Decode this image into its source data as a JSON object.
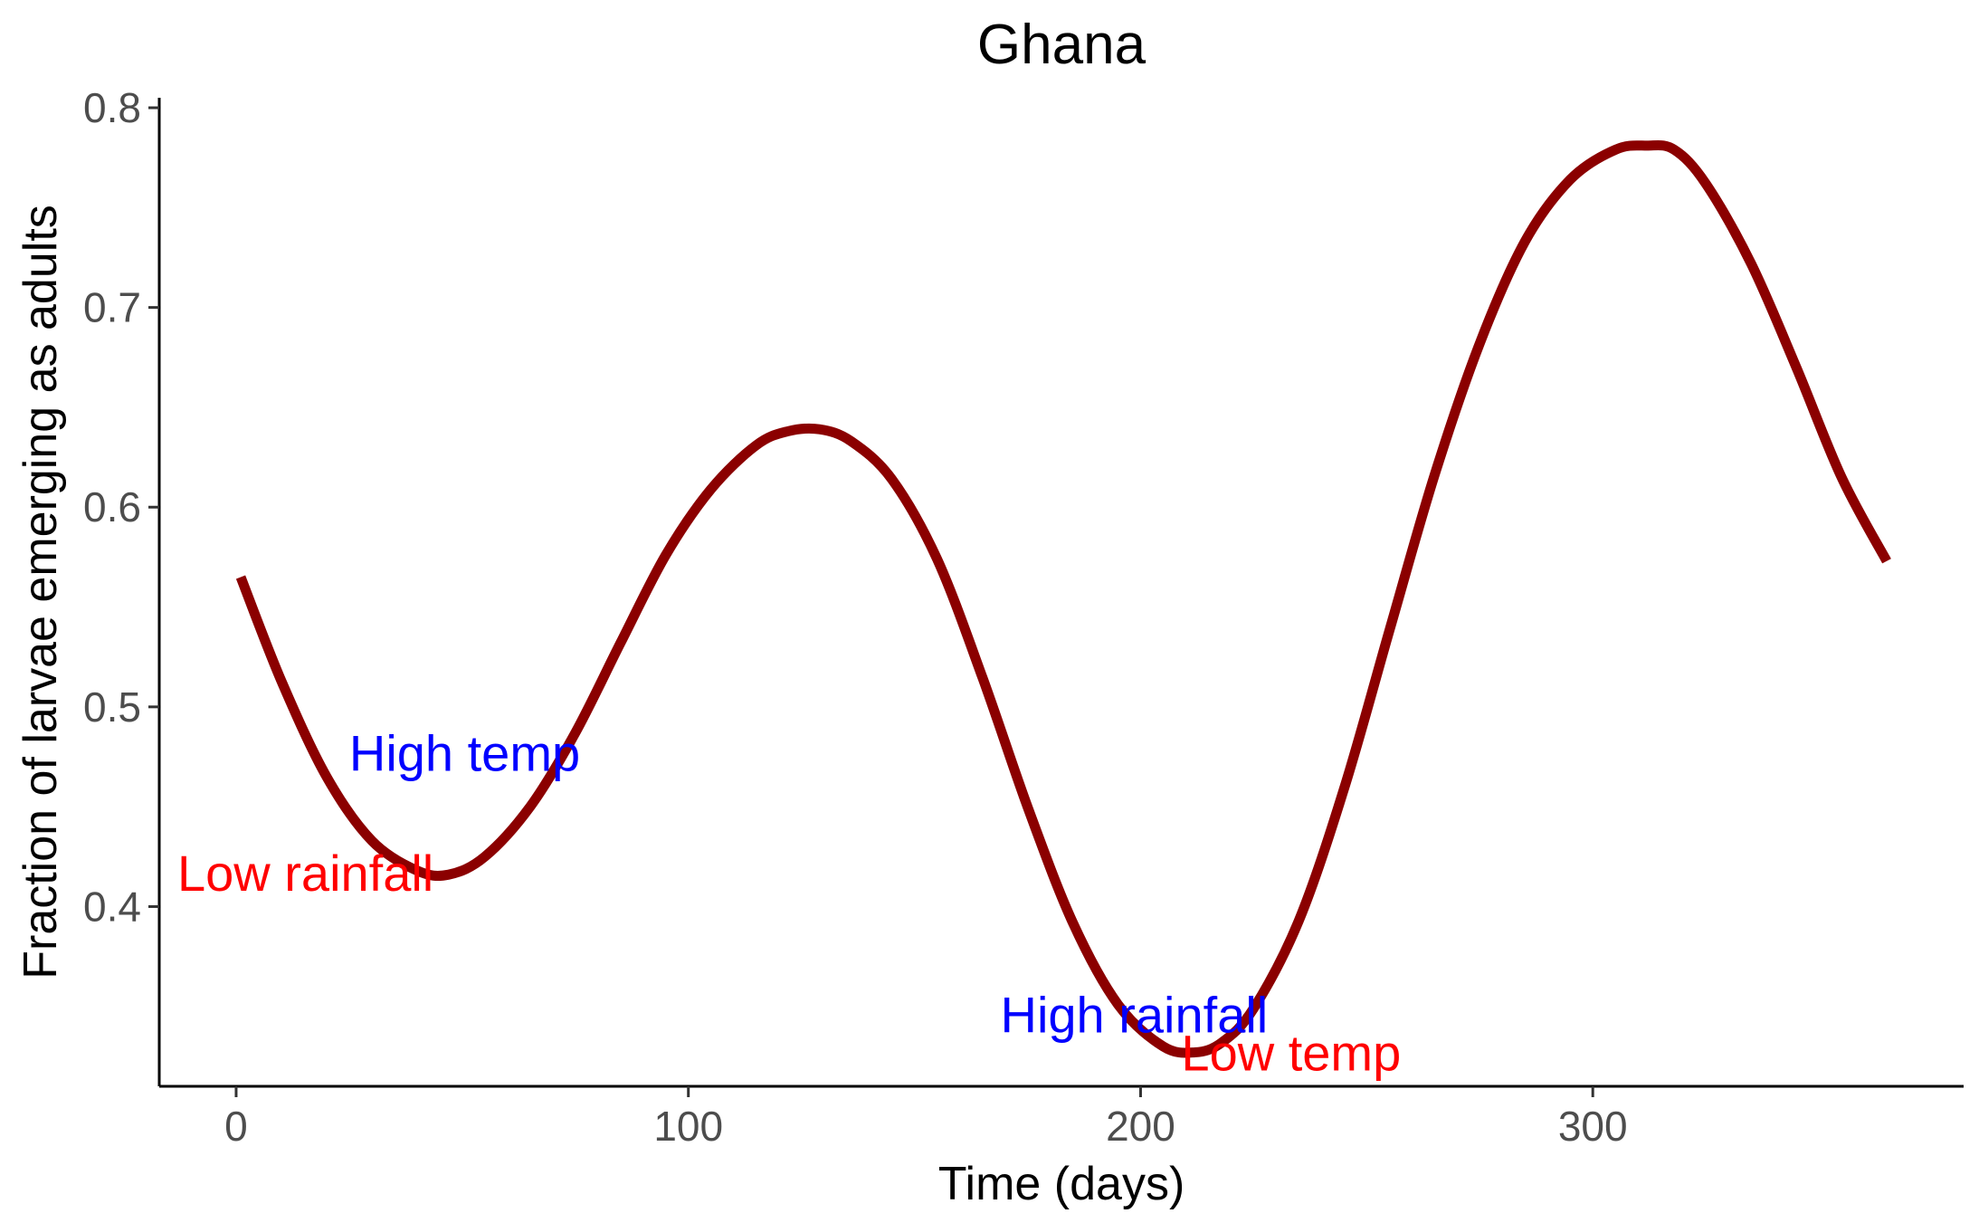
{
  "chart_data": {
    "type": "line",
    "title": "Ghana",
    "xlabel": "Time (days)",
    "ylabel": "Fraction of larvae emerging as adults",
    "xlim": [
      -17,
      382
    ],
    "ylim": [
      0.31,
      0.805
    ],
    "x_ticks": [
      0,
      100,
      200,
      300
    ],
    "y_ticks": [
      0.4,
      0.5,
      0.6,
      0.7,
      0.8
    ],
    "x_tick_labels": [
      "0",
      "100",
      "200",
      "300"
    ],
    "y_tick_labels": [
      "0.4",
      "0.5",
      "0.6",
      "0.7",
      "0.8"
    ],
    "grid": false,
    "legend": "none",
    "series": [
      {
        "color": "#8B0000",
        "x": [
          1,
          10,
          20,
          30,
          40,
          47,
          55,
          65,
          75,
          85,
          95,
          105,
          115,
          122,
          129,
          136,
          145,
          155,
          165,
          175,
          185,
          195,
          205,
          212,
          218,
          225,
          235,
          245,
          255,
          265,
          275,
          285,
          295,
          305,
          312,
          318,
          325,
          335,
          345,
          355,
          365
        ],
        "y": [
          0.565,
          0.513,
          0.465,
          0.433,
          0.418,
          0.416,
          0.425,
          0.45,
          0.487,
          0.532,
          0.576,
          0.609,
          0.631,
          0.638,
          0.639,
          0.633,
          0.614,
          0.574,
          0.515,
          0.45,
          0.392,
          0.351,
          0.33,
          0.327,
          0.332,
          0.349,
          0.393,
          0.459,
          0.538,
          0.616,
          0.682,
          0.733,
          0.764,
          0.779,
          0.781,
          0.779,
          0.762,
          0.722,
          0.67,
          0.615,
          0.573
        ]
      }
    ],
    "annotations": [
      {
        "text": "High temp",
        "x": 25,
        "y": 0.477,
        "color": "#0000FF"
      },
      {
        "text": "Low rainfall",
        "x": -13,
        "y": 0.417,
        "color": "#FF0000"
      },
      {
        "text": "High rainfall",
        "x": 169,
        "y": 0.346,
        "color": "#0000FF"
      },
      {
        "text": "Low temp",
        "x": 209,
        "y": 0.327,
        "color": "#FF0000"
      }
    ]
  }
}
